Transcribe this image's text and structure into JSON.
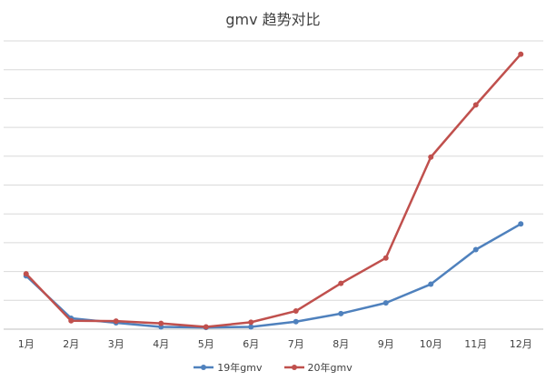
{
  "chart_data": {
    "type": "line",
    "title": "gmv 趋势对比",
    "categories": [
      "1月",
      "2月",
      "3月",
      "4月",
      "5月",
      "6月",
      "7月",
      "8月",
      "9月",
      "10月",
      "11月",
      "12月"
    ],
    "series": [
      {
        "name": "19年gmv",
        "color": "#4F81BD",
        "values": [
          18.5,
          3.8,
          2.2,
          0.8,
          0.6,
          0.8,
          2.6,
          5.4,
          9.1,
          15.6,
          27.6,
          36.5
        ]
      },
      {
        "name": "20年gmv",
        "color": "#C0504D",
        "values": [
          19.2,
          2.9,
          2.8,
          2.0,
          0.8,
          2.4,
          6.3,
          15.9,
          24.7,
          59.7,
          77.8,
          95.4
        ]
      }
    ],
    "ylim": [
      0,
      100
    ],
    "grid": true,
    "legend": "bottom"
  }
}
